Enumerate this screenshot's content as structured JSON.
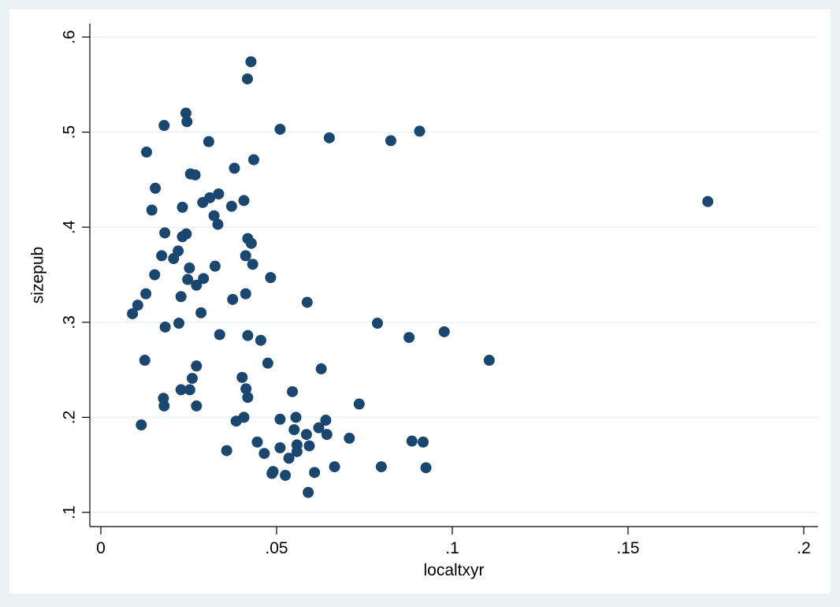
{
  "chart_data": {
    "type": "scatter",
    "title": "",
    "xlabel": "localtxyr",
    "ylabel": "sizepub",
    "xlim": [
      0,
      0.2
    ],
    "ylim": [
      0.1,
      0.6
    ],
    "xticks": [
      {
        "value": 0,
        "label": "0"
      },
      {
        "value": 0.05,
        "label": ".05"
      },
      {
        "value": 0.1,
        "label": ".1"
      },
      {
        "value": 0.15,
        "label": ".15"
      },
      {
        "value": 0.2,
        "label": ".2"
      }
    ],
    "yticks": [
      {
        "value": 0.1,
        "label": ".1"
      },
      {
        "value": 0.2,
        "label": ".2"
      },
      {
        "value": 0.3,
        "label": ".3"
      },
      {
        "value": 0.4,
        "label": ".4"
      },
      {
        "value": 0.5,
        "label": ".5"
      },
      {
        "value": 0.6,
        "label": ".6"
      }
    ],
    "grid": "horizontal",
    "colors": {
      "background": "#eaf2f3",
      "plot_background": "#ffffff",
      "marker": "#1a476f",
      "grid": "#eaf2f3"
    },
    "points": [
      [
        0.0427,
        0.574
      ],
      [
        0.0417,
        0.556
      ],
      [
        0.0242,
        0.52
      ],
      [
        0.0245,
        0.511
      ],
      [
        0.018,
        0.507
      ],
      [
        0.051,
        0.503
      ],
      [
        0.0907,
        0.501
      ],
      [
        0.065,
        0.494
      ],
      [
        0.0825,
        0.491
      ],
      [
        0.0307,
        0.49
      ],
      [
        0.013,
        0.479
      ],
      [
        0.0435,
        0.471
      ],
      [
        0.038,
        0.462
      ],
      [
        0.0255,
        0.456
      ],
      [
        0.0268,
        0.455
      ],
      [
        0.0155,
        0.441
      ],
      [
        0.0335,
        0.435
      ],
      [
        0.031,
        0.431
      ],
      [
        0.0407,
        0.428
      ],
      [
        0.1727,
        0.427
      ],
      [
        0.029,
        0.426
      ],
      [
        0.0232,
        0.421
      ],
      [
        0.0372,
        0.422
      ],
      [
        0.0145,
        0.418
      ],
      [
        0.0322,
        0.412
      ],
      [
        0.0333,
        0.403
      ],
      [
        0.0243,
        0.393
      ],
      [
        0.0182,
        0.394
      ],
      [
        0.0232,
        0.39
      ],
      [
        0.0418,
        0.388
      ],
      [
        0.0428,
        0.383
      ],
      [
        0.022,
        0.375
      ],
      [
        0.0173,
        0.37
      ],
      [
        0.0412,
        0.37
      ],
      [
        0.0207,
        0.367
      ],
      [
        0.0432,
        0.361
      ],
      [
        0.0325,
        0.359
      ],
      [
        0.0252,
        0.357
      ],
      [
        0.0153,
        0.35
      ],
      [
        0.0483,
        0.347
      ],
      [
        0.0292,
        0.346
      ],
      [
        0.0247,
        0.345
      ],
      [
        0.0272,
        0.339
      ],
      [
        0.0128,
        0.33
      ],
      [
        0.0412,
        0.33
      ],
      [
        0.0228,
        0.327
      ],
      [
        0.0375,
        0.324
      ],
      [
        0.0587,
        0.321
      ],
      [
        0.0105,
        0.318
      ],
      [
        0.0285,
        0.31
      ],
      [
        0.009,
        0.309
      ],
      [
        0.0787,
        0.299
      ],
      [
        0.0222,
        0.299
      ],
      [
        0.0183,
        0.295
      ],
      [
        0.0977,
        0.29
      ],
      [
        0.0418,
        0.286
      ],
      [
        0.0338,
        0.287
      ],
      [
        0.0877,
        0.284
      ],
      [
        0.0455,
        0.281
      ],
      [
        0.0125,
        0.26
      ],
      [
        0.1105,
        0.26
      ],
      [
        0.0475,
        0.257
      ],
      [
        0.0272,
        0.254
      ],
      [
        0.0627,
        0.251
      ],
      [
        0.026,
        0.241
      ],
      [
        0.0402,
        0.242
      ],
      [
        0.0228,
        0.229
      ],
      [
        0.0253,
        0.229
      ],
      [
        0.0413,
        0.23
      ],
      [
        0.0545,
        0.227
      ],
      [
        0.0178,
        0.22
      ],
      [
        0.0418,
        0.221
      ],
      [
        0.0735,
        0.214
      ],
      [
        0.018,
        0.212
      ],
      [
        0.0272,
        0.212
      ],
      [
        0.0407,
        0.2
      ],
      [
        0.0555,
        0.2
      ],
      [
        0.051,
        0.198
      ],
      [
        0.0385,
        0.196
      ],
      [
        0.064,
        0.197
      ],
      [
        0.0115,
        0.192
      ],
      [
        0.062,
        0.189
      ],
      [
        0.055,
        0.187
      ],
      [
        0.0585,
        0.182
      ],
      [
        0.0643,
        0.182
      ],
      [
        0.0707,
        0.178
      ],
      [
        0.0885,
        0.175
      ],
      [
        0.0917,
        0.174
      ],
      [
        0.0445,
        0.174
      ],
      [
        0.0558,
        0.171
      ],
      [
        0.0593,
        0.17
      ],
      [
        0.051,
        0.168
      ],
      [
        0.0558,
        0.164
      ],
      [
        0.0358,
        0.165
      ],
      [
        0.0465,
        0.162
      ],
      [
        0.0535,
        0.157
      ],
      [
        0.0665,
        0.148
      ],
      [
        0.0798,
        0.148
      ],
      [
        0.0925,
        0.147
      ],
      [
        0.049,
        0.143
      ],
      [
        0.0608,
        0.142
      ],
      [
        0.0487,
        0.141
      ],
      [
        0.0525,
        0.139
      ],
      [
        0.059,
        0.121
      ]
    ]
  }
}
